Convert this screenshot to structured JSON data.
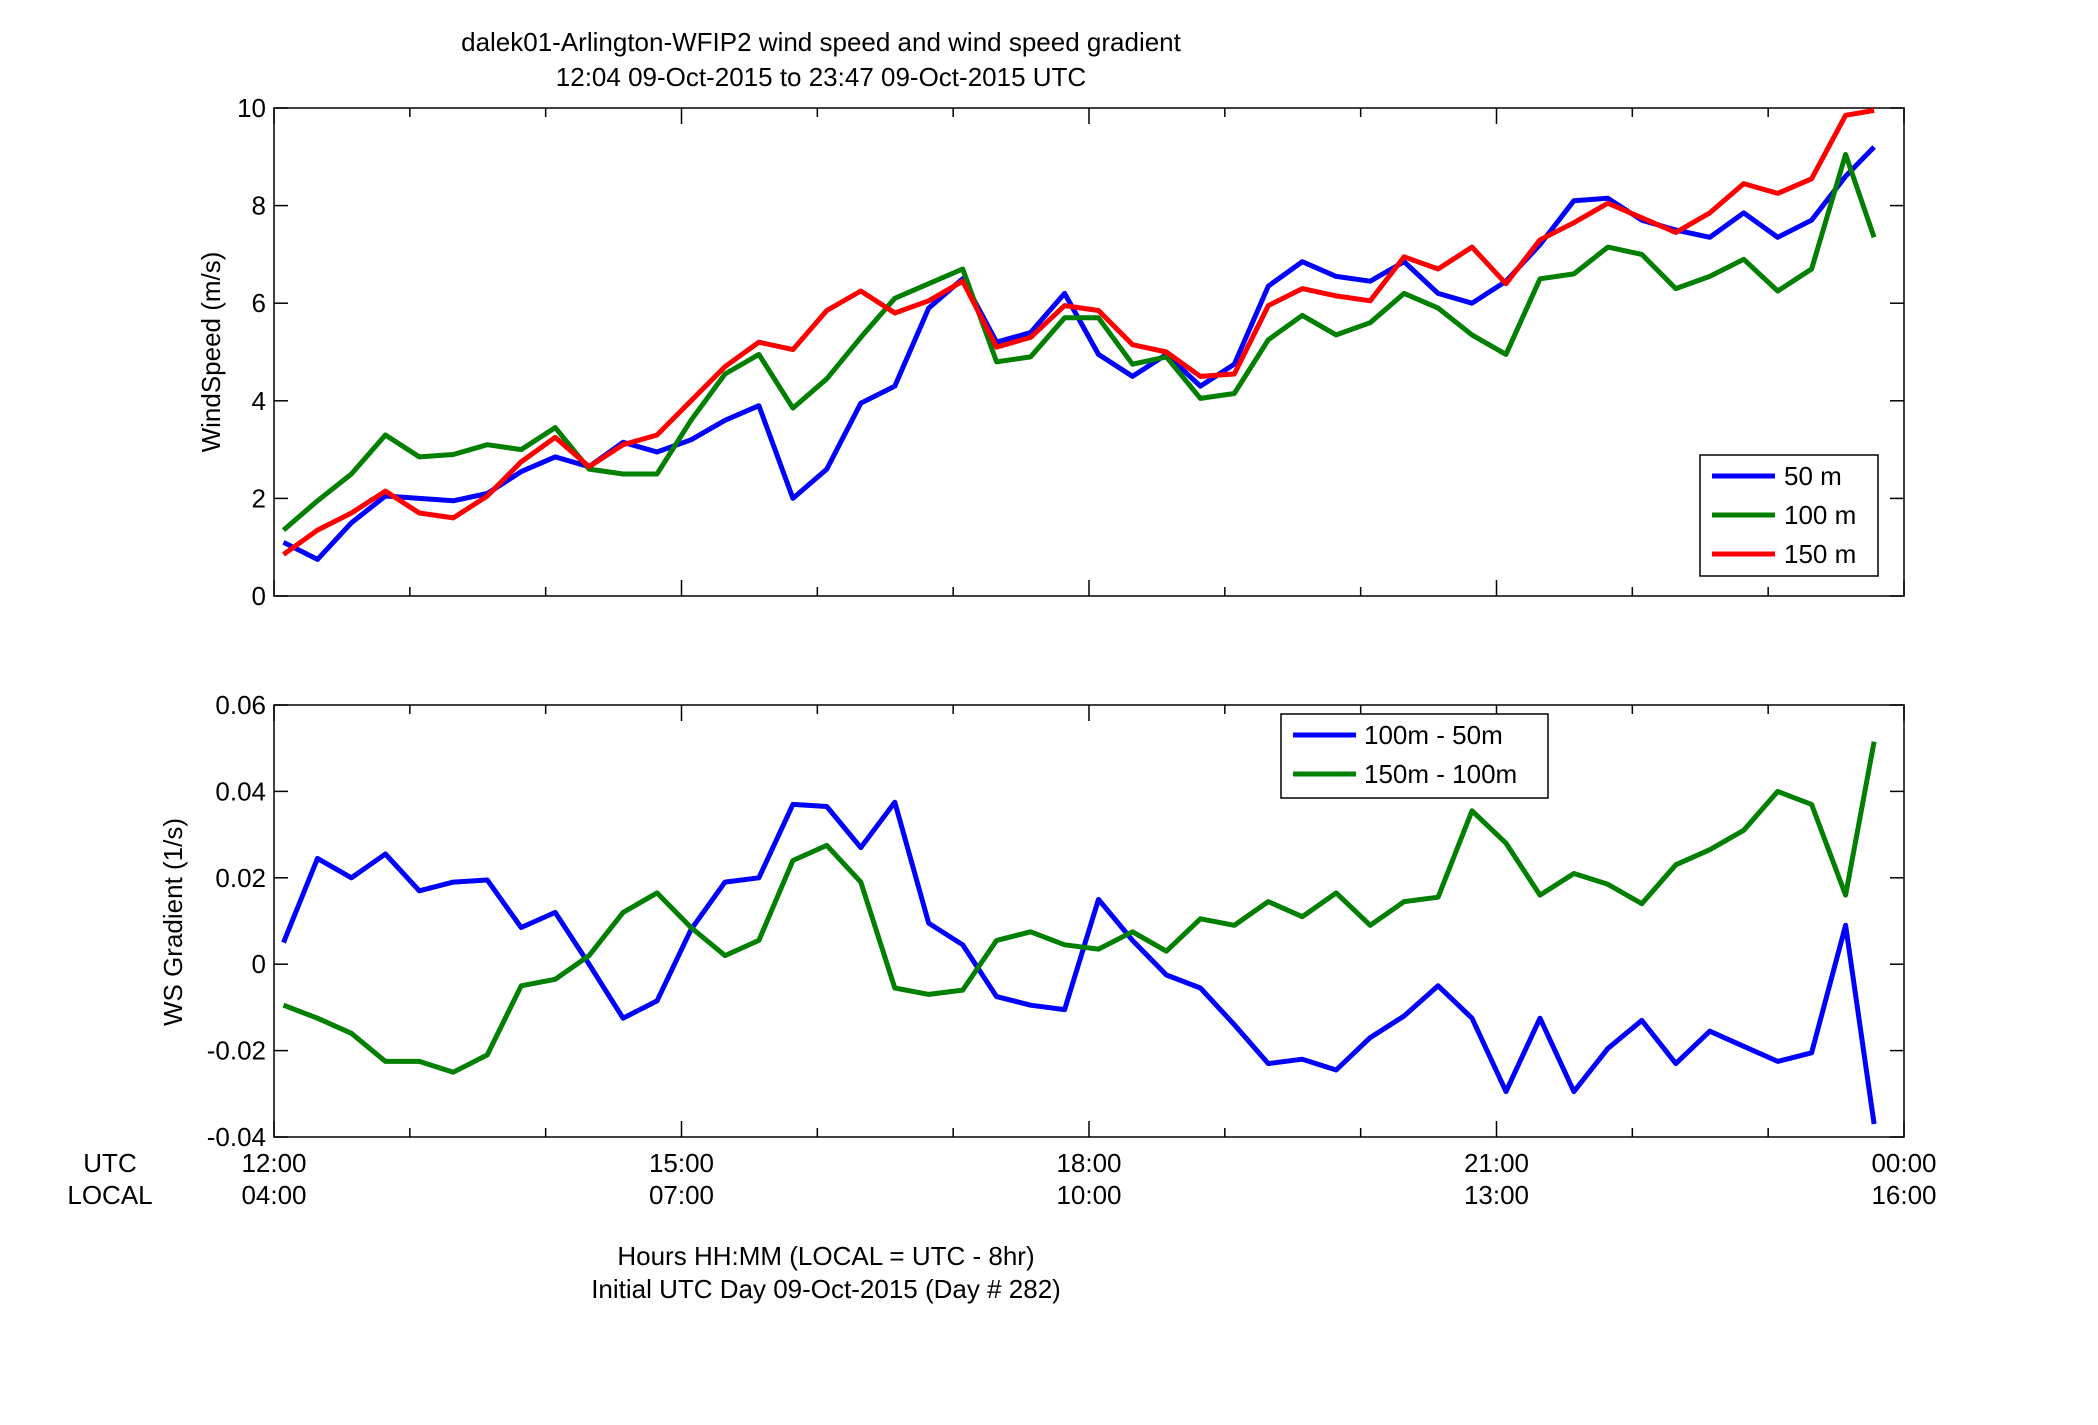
{
  "figure": {
    "title_line1": "dalek01-Arlington-WFIP2  wind speed and wind speed gradient",
    "title_line2": "12:04 09-Oct-2015 to 23:47 09-Oct-2015  UTC",
    "row_label_utc": "UTC",
    "row_label_local": "LOCAL",
    "xlabel_line1": "Hours HH:MM  (LOCAL = UTC - 8hr)",
    "xlabel_line2": "Initial UTC Day 09-Oct-2015 (Day # 282)"
  },
  "colors": {
    "blue": "#0000ff",
    "green": "#007f00",
    "red": "#ff0000"
  },
  "chart_data": [
    {
      "type": "line",
      "title": "",
      "xlabel": "",
      "ylabel": "WindSpeed (m/s)",
      "x_unit": "UTC hour",
      "xlim": [
        12,
        24
      ],
      "ylim": [
        0,
        10
      ],
      "yticks": [
        "0",
        "2",
        "4",
        "6",
        "8",
        "10"
      ],
      "xticks": [
        12,
        15,
        18,
        21,
        24
      ],
      "xtick_labels_utc": [
        "12:00",
        "15:00",
        "18:00",
        "21:00",
        "00:00"
      ],
      "xtick_labels_local": [
        "04:00",
        "07:00",
        "10:00",
        "13:00",
        "16:00"
      ],
      "legend_placement": "lower-right",
      "grid": false,
      "x": [
        12.07,
        12.32,
        12.57,
        12.82,
        13.07,
        13.32,
        13.57,
        13.82,
        14.07,
        14.32,
        14.57,
        14.82,
        15.07,
        15.32,
        15.57,
        15.82,
        16.07,
        16.32,
        16.57,
        16.82,
        17.07,
        17.32,
        17.57,
        17.82,
        18.07,
        18.32,
        18.57,
        18.82,
        19.07,
        19.32,
        19.57,
        19.82,
        20.07,
        20.32,
        20.57,
        20.82,
        21.07,
        21.32,
        21.57,
        21.82,
        22.07,
        22.32,
        22.57,
        22.82,
        23.07,
        23.32,
        23.57,
        23.78
      ],
      "series": [
        {
          "name": "50 m",
          "color": "blue",
          "values": [
            1.1,
            0.75,
            1.5,
            2.05,
            2.0,
            1.95,
            2.1,
            2.55,
            2.85,
            2.65,
            3.15,
            2.95,
            3.2,
            3.6,
            3.9,
            2.0,
            2.6,
            3.95,
            4.3,
            5.9,
            6.5,
            5.2,
            5.4,
            6.2,
            4.95,
            4.5,
            4.95,
            4.3,
            4.75,
            6.35,
            6.85,
            6.55,
            6.45,
            6.85,
            6.2,
            6.0,
            6.45,
            7.2,
            8.1,
            8.15,
            7.7,
            7.5,
            7.35,
            7.85,
            7.35,
            7.7,
            8.6,
            9.2
          ]
        },
        {
          "name": "100 m",
          "color": "green",
          "values": [
            1.35,
            1.95,
            2.5,
            3.3,
            2.85,
            2.9,
            3.1,
            3.0,
            3.45,
            2.6,
            2.5,
            2.5,
            3.6,
            4.55,
            4.95,
            3.85,
            4.45,
            5.3,
            6.1,
            6.4,
            6.7,
            4.8,
            4.9,
            5.7,
            5.7,
            4.75,
            4.9,
            4.05,
            4.15,
            5.25,
            5.75,
            5.35,
            5.6,
            6.2,
            5.9,
            5.35,
            4.95,
            6.5,
            6.6,
            7.15,
            7.0,
            6.3,
            6.55,
            6.9,
            6.25,
            6.7,
            9.05,
            7.35
          ]
        },
        {
          "name": "150 m",
          "color": "red",
          "values": [
            0.85,
            1.35,
            1.7,
            2.15,
            1.7,
            1.6,
            2.05,
            2.75,
            3.25,
            2.65,
            3.1,
            3.3,
            4.0,
            4.7,
            5.2,
            5.05,
            5.85,
            6.25,
            5.8,
            6.05,
            6.45,
            5.1,
            5.3,
            5.95,
            5.85,
            5.15,
            5.0,
            4.5,
            4.55,
            5.95,
            6.3,
            6.15,
            6.05,
            6.95,
            6.7,
            7.15,
            6.4,
            7.3,
            7.65,
            8.05,
            7.75,
            7.45,
            7.85,
            8.45,
            8.25,
            8.55,
            9.85,
            9.95
          ]
        }
      ]
    },
    {
      "type": "line",
      "title": "",
      "xlabel": "",
      "ylabel": "WS Gradient (1/s)",
      "x_unit": "UTC hour",
      "xlim": [
        12,
        24
      ],
      "ylim": [
        -0.04,
        0.06
      ],
      "yticks": [
        "-0.04",
        "-0.02",
        "0",
        "0.02",
        "0.04",
        "0.06"
      ],
      "xticks": [
        12,
        15,
        18,
        21,
        24
      ],
      "xtick_labels_utc": [
        "12:00",
        "15:00",
        "18:00",
        "21:00",
        "00:00"
      ],
      "xtick_labels_local": [
        "04:00",
        "07:00",
        "10:00",
        "13:00",
        "16:00"
      ],
      "legend_placement": "top-right",
      "grid": false,
      "x": [
        12.07,
        12.32,
        12.57,
        12.82,
        13.07,
        13.32,
        13.57,
        13.82,
        14.07,
        14.32,
        14.57,
        14.82,
        15.07,
        15.32,
        15.57,
        15.82,
        16.07,
        16.32,
        16.57,
        16.82,
        17.07,
        17.32,
        17.57,
        17.82,
        18.07,
        18.32,
        18.57,
        18.82,
        19.07,
        19.32,
        19.57,
        19.82,
        20.07,
        20.32,
        20.57,
        20.82,
        21.07,
        21.32,
        21.57,
        21.82,
        22.07,
        22.32,
        22.57,
        22.82,
        23.07,
        23.32,
        23.57,
        23.78
      ],
      "series": [
        {
          "name": "100m - 50m",
          "color": "blue",
          "values": [
            0.005,
            0.0245,
            0.02,
            0.0255,
            0.017,
            0.019,
            0.0195,
            0.0085,
            0.012,
            0.0,
            -0.0125,
            -0.0085,
            0.008,
            0.019,
            0.02,
            0.037,
            0.0365,
            0.027,
            0.0375,
            0.0095,
            0.0045,
            -0.0075,
            -0.0095,
            -0.0105,
            0.015,
            0.0055,
            -0.0025,
            -0.0055,
            -0.014,
            -0.023,
            -0.022,
            -0.0245,
            -0.017,
            -0.012,
            -0.005,
            -0.0125,
            -0.0295,
            -0.0125,
            -0.0295,
            -0.0195,
            -0.013,
            -0.023,
            -0.0155,
            -0.019,
            -0.0225,
            -0.0205,
            0.009,
            -0.037
          ]
        },
        {
          "name": "150m - 100m",
          "color": "green",
          "values": [
            -0.0095,
            -0.0125,
            -0.016,
            -0.0225,
            -0.0225,
            -0.025,
            -0.021,
            -0.005,
            -0.0035,
            0.002,
            0.012,
            0.0165,
            0.0085,
            0.002,
            0.0055,
            0.024,
            0.0275,
            0.019,
            -0.0055,
            -0.007,
            -0.006,
            0.0055,
            0.0075,
            0.0045,
            0.0035,
            0.0075,
            0.003,
            0.0105,
            0.009,
            0.0145,
            0.011,
            0.0165,
            0.009,
            0.0145,
            0.0155,
            0.0355,
            0.028,
            0.016,
            0.021,
            0.0185,
            0.014,
            0.023,
            0.0265,
            0.031,
            0.04,
            0.037,
            0.016,
            0.0515
          ]
        }
      ]
    }
  ]
}
